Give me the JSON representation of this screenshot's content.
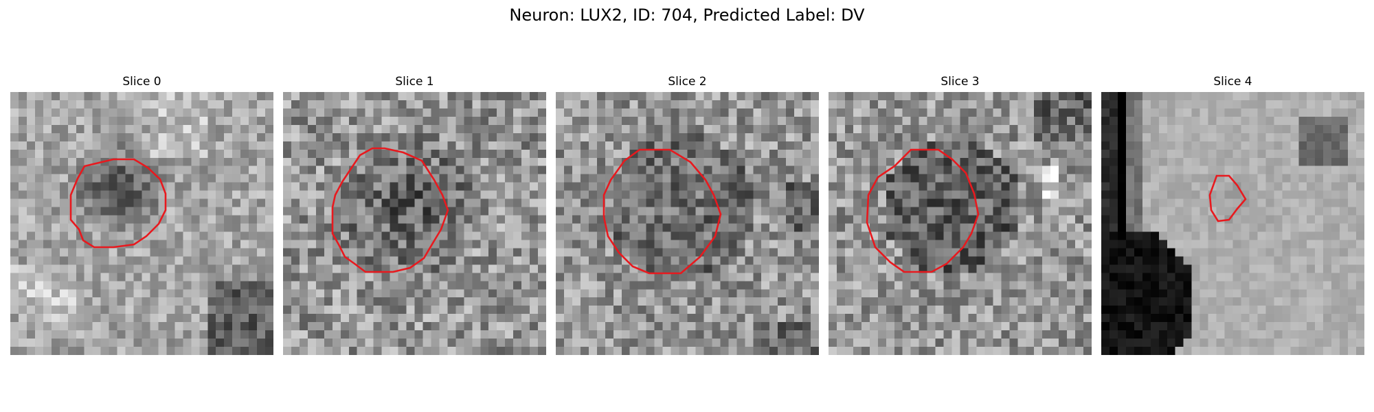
{
  "figure": {
    "title": "Neuron: LUX2, ID: 704, Predicted Label: DV"
  },
  "panels": [
    {
      "title": "Slice 0"
    },
    {
      "title": "Slice 1"
    },
    {
      "title": "Slice 2"
    },
    {
      "title": "Slice 3"
    },
    {
      "title": "Slice 4"
    }
  ],
  "colors": {
    "contour": "#e8191e",
    "colormap": "gray"
  }
}
